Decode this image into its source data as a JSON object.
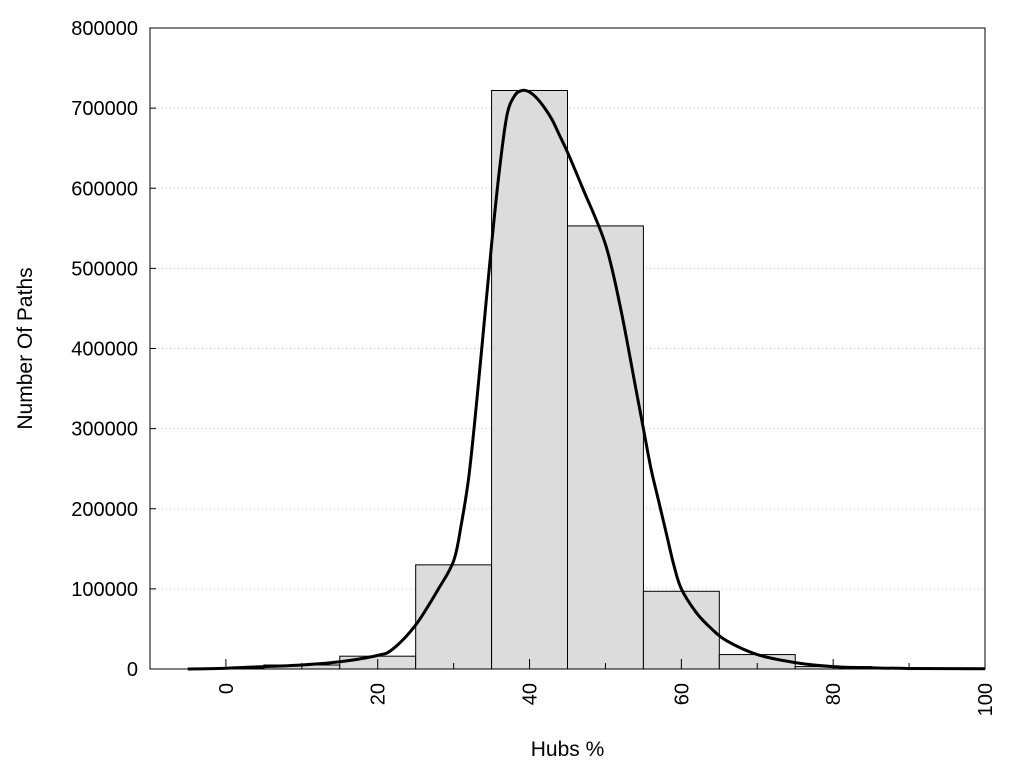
{
  "chart_data": {
    "type": "bar",
    "title": "",
    "xlabel": "Hubs %",
    "ylabel": "Number Of Paths",
    "xlim": [
      -10,
      100
    ],
    "ylim": [
      0,
      800000
    ],
    "x_ticks": [
      0,
      20,
      40,
      60,
      80,
      100
    ],
    "y_ticks": [
      0,
      100000,
      200000,
      300000,
      400000,
      500000,
      600000,
      700000,
      800000
    ],
    "grid": "horizontal-dotted",
    "bar_width": 10,
    "bars": [
      {
        "x": 0,
        "value": 1000
      },
      {
        "x": 10,
        "value": 5000
      },
      {
        "x": 20,
        "value": 16000
      },
      {
        "x": 30,
        "value": 130000
      },
      {
        "x": 40,
        "value": 722000
      },
      {
        "x": 50,
        "value": 553000
      },
      {
        "x": 60,
        "value": 97000
      },
      {
        "x": 70,
        "value": 18000
      },
      {
        "x": 80,
        "value": 3000
      },
      {
        "x": 90,
        "value": 1000
      }
    ],
    "curve": {
      "x": [
        -5,
        0,
        5,
        10,
        15,
        20,
        22,
        25,
        28,
        30,
        31,
        32,
        33,
        34,
        35,
        36,
        37,
        38,
        39,
        40,
        41,
        42,
        43,
        44,
        45,
        47,
        50,
        52,
        54,
        55,
        56,
        57,
        58,
        59,
        60,
        62,
        64,
        66,
        70,
        75,
        80,
        85,
        90,
        100
      ],
      "y": [
        0,
        1000,
        3000,
        5000,
        9000,
        17000,
        25000,
        55000,
        100000,
        135000,
        180000,
        240000,
        330000,
        430000,
        530000,
        620000,
        690000,
        715000,
        722000,
        720000,
        712000,
        700000,
        685000,
        665000,
        645000,
        600000,
        530000,
        450000,
        350000,
        300000,
        250000,
        210000,
        170000,
        130000,
        100000,
        70000,
        50000,
        35000,
        18000,
        8000,
        3000,
        1500,
        700,
        300
      ]
    },
    "colors": {
      "bar_fill": "#dcdcdc",
      "bar_stroke": "#000000",
      "curve": "#000000",
      "grid": "#c8c8c8"
    }
  }
}
